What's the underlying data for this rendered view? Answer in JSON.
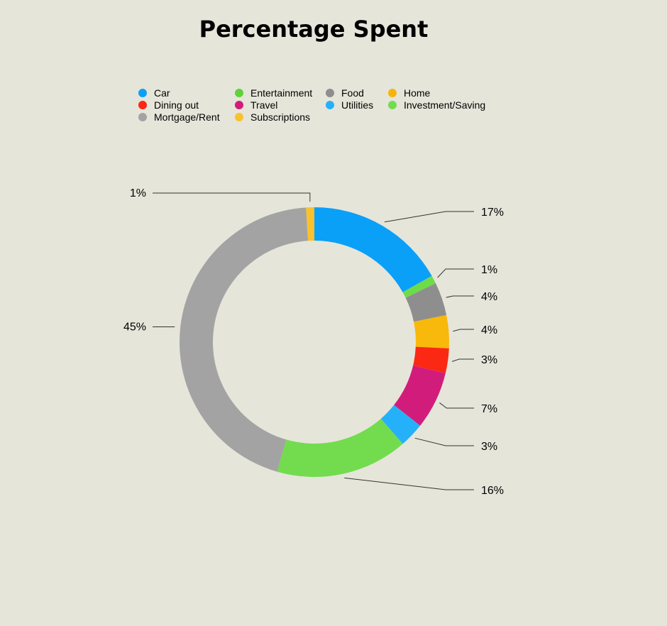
{
  "chart_data": {
    "type": "pie",
    "title": "Percentage Spent",
    "legend_position": "top",
    "start_slice": "Car",
    "direction": "clockwise",
    "slices": [
      {
        "name": "Car",
        "value": 17,
        "label": "17%",
        "color": "#0aa0f8"
      },
      {
        "name": "Investment/Saving",
        "value": 1,
        "label": "1%",
        "color": "#6ddc48"
      },
      {
        "name": "Food",
        "value": 4,
        "label": "4%",
        "color": "#8e8e8e"
      },
      {
        "name": "Home",
        "value": 4,
        "label": "4%",
        "color": "#f8b80c"
      },
      {
        "name": "Dining out",
        "value": 3,
        "label": "3%",
        "color": "#fb2813"
      },
      {
        "name": "Travel",
        "value": 7,
        "label": "7%",
        "color": "#d21c7b"
      },
      {
        "name": "Utilities",
        "value": 3,
        "label": "3%",
        "color": "#25b1fa"
      },
      {
        "name": "Entertainment",
        "value": 16,
        "label": "16%",
        "color": "#72dc4e"
      },
      {
        "name": "Mortgage/Rent",
        "value": 45,
        "label": "45%",
        "color": "#a3a3a3"
      },
      {
        "name": "Subscriptions",
        "value": 1,
        "label": "1%",
        "color": "#f9c22d"
      }
    ],
    "legend": [
      {
        "name": "Car",
        "color": "#0aa0f8"
      },
      {
        "name": "Entertainment",
        "color": "#5fd239"
      },
      {
        "name": "Food",
        "color": "#8e8e8e"
      },
      {
        "name": "Home",
        "color": "#f7b50b"
      },
      {
        "name": "Dining out",
        "color": "#fb2813"
      },
      {
        "name": "Travel",
        "color": "#d21c7b"
      },
      {
        "name": "Utilities",
        "color": "#25b1fa"
      },
      {
        "name": "Investment/Saving",
        "color": "#72dc4e"
      },
      {
        "name": "Mortgage/Rent",
        "color": "#a3a3a3"
      },
      {
        "name": "Subscriptions",
        "color": "#f9c22d"
      }
    ]
  }
}
